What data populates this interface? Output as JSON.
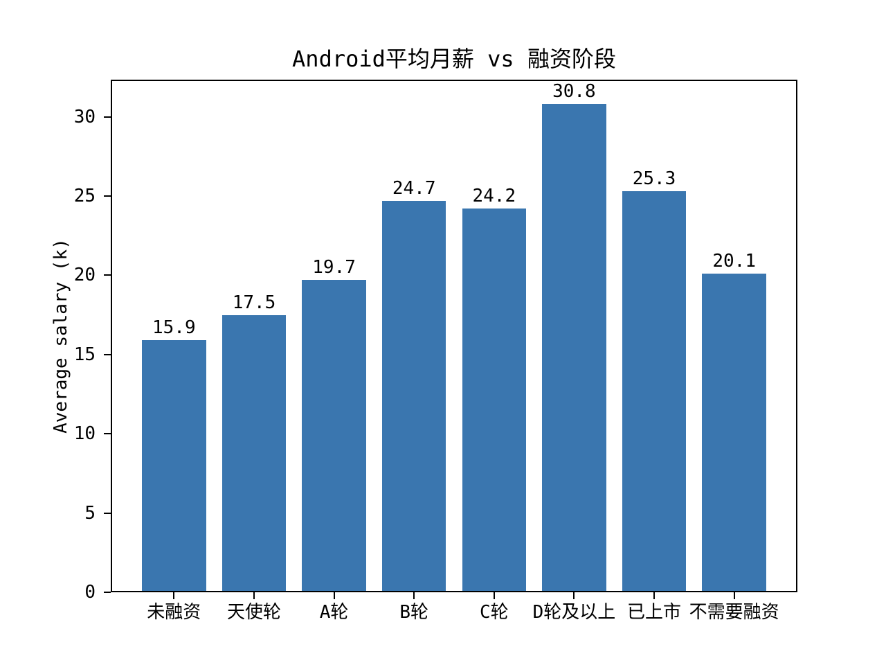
{
  "figure": {
    "background": "#ffffff",
    "title": "Android平均月薪 vs 融资阶段"
  },
  "chart_data": {
    "type": "bar",
    "title": "Android平均月薪 vs 融资阶段",
    "categories": [
      "未融资",
      "天使轮",
      "A轮",
      "B轮",
      "C轮",
      "D轮及以上",
      "已上市",
      "不需要融资"
    ],
    "values": [
      15.9,
      17.5,
      19.7,
      24.7,
      24.2,
      30.8,
      25.3,
      20.1
    ],
    "value_labels": [
      "15.9",
      "17.5",
      "19.7",
      "24.7",
      "24.2",
      "30.8",
      "25.3",
      "20.1"
    ],
    "xlabel": "",
    "ylabel": "Average salary (k)",
    "ylim": [
      0,
      32.34
    ],
    "yticks": [
      0,
      5,
      10,
      15,
      20,
      25,
      30
    ],
    "bar_color": "#3a76af",
    "axis_color": "#000000",
    "grid": false,
    "legend_position": "none",
    "bar_width_fraction": 0.8
  }
}
